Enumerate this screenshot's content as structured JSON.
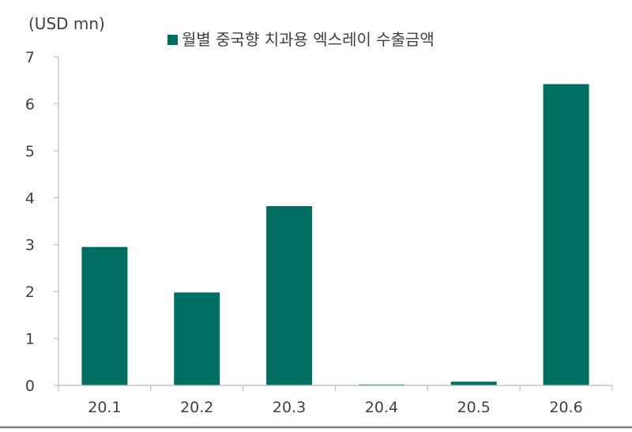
{
  "chart_data": {
    "type": "bar",
    "title": "",
    "ylabel": "(USD mn)",
    "xlabel": "",
    "categories": [
      "20.1",
      "20.2",
      "20.3",
      "20.4",
      "20.5",
      "20.6"
    ],
    "series": [
      {
        "name": "월별 중국향 치과용 엑스레이 수출금액",
        "values": [
          2.95,
          1.98,
          3.82,
          0.02,
          0.08,
          6.42
        ],
        "color": "#006f62"
      }
    ],
    "ylim": [
      0,
      7
    ],
    "yticks": [
      "0",
      "1",
      "2",
      "3",
      "4",
      "5",
      "6",
      "7"
    ],
    "grid": false,
    "legend_position": "top"
  }
}
